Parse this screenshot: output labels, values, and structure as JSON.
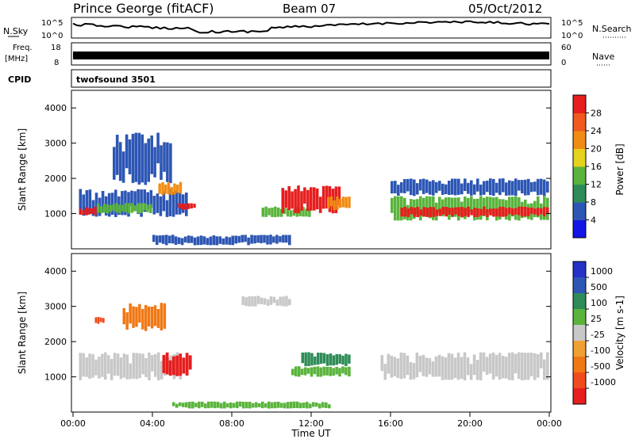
{
  "header": {
    "station": "Prince George (fitACF)",
    "beam": "Beam 07",
    "date": "05/Oct/2012"
  },
  "noise_panel": {
    "left_label": "N.Sky",
    "left_ticks": [
      "10^5",
      "10^0"
    ],
    "right_label": "N.Search",
    "right_ticks": [
      "10^5",
      "10^0"
    ]
  },
  "freq_panel": {
    "left_label_1": "Freq.",
    "left_label_2": "[MHz]",
    "left_ticks": [
      "18",
      "8"
    ],
    "right_label": "Nave",
    "right_ticks": [
      "60",
      "0"
    ]
  },
  "cpid_panel": {
    "label": "CPID",
    "program": "twofsound 3501"
  },
  "chart_data": [
    {
      "type": "heatmap",
      "panel": "power",
      "ylabel": "Slant Range [km]",
      "xlabel": "",
      "y_ticks": [
        "1000",
        "2000",
        "3000",
        "4000"
      ],
      "ylim": [
        0,
        4500
      ],
      "xlim": [
        0,
        24
      ],
      "colorbar_label": "Power [dB]",
      "colorbar_ticks": [
        "4",
        "8",
        "12",
        "16",
        "20",
        "24",
        "28"
      ],
      "colorbar_colors": [
        "#1414e6",
        "#2d56b4",
        "#2e8b57",
        "#5ab43c",
        "#e6d21e",
        "#f08c14",
        "#f05a1e",
        "#e61e1e"
      ],
      "regions": [
        {
          "t0": 0.3,
          "t1": 5.8,
          "r0": 900,
          "r1": 1700,
          "color": "#2d56b4"
        },
        {
          "t0": 0.3,
          "t1": 1.2,
          "r0": 950,
          "r1": 1200,
          "color": "#e61e1e"
        },
        {
          "t0": 1.2,
          "t1": 4.0,
          "r0": 1000,
          "r1": 1300,
          "color": "#5ab43c"
        },
        {
          "t0": 2.0,
          "t1": 5.0,
          "r0": 1800,
          "r1": 3300,
          "color": "#2d56b4"
        },
        {
          "t0": 4.3,
          "t1": 5.5,
          "r0": 1500,
          "r1": 1900,
          "color": "#f08c14"
        },
        {
          "t0": 5.3,
          "t1": 6.2,
          "r0": 1100,
          "r1": 1300,
          "color": "#e61e1e"
        },
        {
          "t0": 9.5,
          "t1": 12.0,
          "r0": 900,
          "r1": 1200,
          "color": "#5ab43c"
        },
        {
          "t0": 10.5,
          "t1": 13.5,
          "r0": 1000,
          "r1": 1800,
          "color": "#e61e1e"
        },
        {
          "t0": 12.8,
          "t1": 14.0,
          "r0": 1100,
          "r1": 1500,
          "color": "#f08c14"
        },
        {
          "t0": 4.0,
          "t1": 11.0,
          "r0": 100,
          "r1": 400,
          "color": "#2d56b4"
        },
        {
          "t0": 16.0,
          "t1": 24.0,
          "r0": 800,
          "r1": 1500,
          "color": "#5ab43c"
        },
        {
          "t0": 16.5,
          "t1": 24.0,
          "r0": 900,
          "r1": 1200,
          "color": "#e61e1e"
        },
        {
          "t0": 16.0,
          "t1": 24.0,
          "r0": 1500,
          "r1": 2000,
          "color": "#2d56b4"
        }
      ]
    },
    {
      "type": "heatmap",
      "panel": "velocity",
      "ylabel": "Slant Range [km]",
      "xlabel": "Time UT",
      "y_ticks": [
        "1000",
        "2000",
        "3000",
        "4000"
      ],
      "ylim": [
        0,
        4500
      ],
      "xlim": [
        0,
        24
      ],
      "x_ticks": [
        "00:00",
        "04:00",
        "08:00",
        "12:00",
        "16:00",
        "20:00",
        "00:00"
      ],
      "colorbar_label": "Velocity [m s-1]",
      "colorbar_ticks": [
        "1000",
        "500",
        "100",
        "25",
        "-25",
        "-100",
        "-500",
        "-1000"
      ],
      "colorbar_colors": [
        "#2432c8",
        "#2d56b4",
        "#2e8b57",
        "#5ab43c",
        "#c8c8c8",
        "#f0a032",
        "#f07814",
        "#f04b1e",
        "#e61e1e"
      ],
      "regions": [
        {
          "t0": 0.3,
          "t1": 5.5,
          "r0": 900,
          "r1": 1700,
          "color": "#c8c8c8"
        },
        {
          "t0": 2.5,
          "t1": 4.7,
          "r0": 2300,
          "r1": 3100,
          "color": "#f07814"
        },
        {
          "t0": 1.1,
          "t1": 1.6,
          "r0": 2500,
          "r1": 2700,
          "color": "#f04b1e"
        },
        {
          "t0": 4.5,
          "t1": 6.0,
          "r0": 1000,
          "r1": 1700,
          "color": "#e61e1e"
        },
        {
          "t0": 11.0,
          "t1": 14.0,
          "r0": 1000,
          "r1": 1300,
          "color": "#5ab43c"
        },
        {
          "t0": 11.5,
          "t1": 14.0,
          "r0": 1300,
          "r1": 1700,
          "color": "#2e8b57"
        },
        {
          "t0": 15.5,
          "t1": 24.0,
          "r0": 900,
          "r1": 1700,
          "color": "#c8c8c8"
        },
        {
          "t0": 8.5,
          "t1": 11.0,
          "r0": 3000,
          "r1": 3300,
          "color": "#c8c8c8"
        },
        {
          "t0": 5.0,
          "t1": 13.0,
          "r0": 100,
          "r1": 300,
          "color": "#5ab43c"
        }
      ]
    }
  ]
}
